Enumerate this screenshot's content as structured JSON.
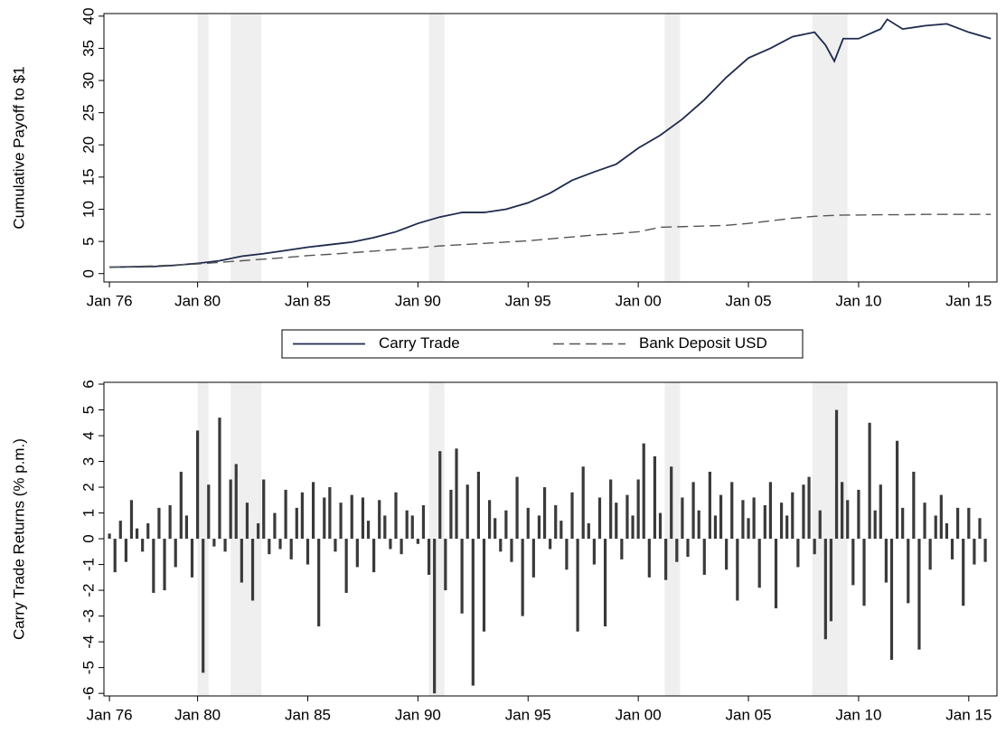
{
  "chart_data": [
    {
      "type": "line",
      "ylabel": "Cumulative Payoff to $1",
      "x": [
        1976,
        1977,
        1978,
        1979,
        1980,
        1981,
        1982,
        1983,
        1984,
        1985,
        1986,
        1987,
        1988,
        1989,
        1990,
        1991,
        1992,
        1993,
        1994,
        1995,
        1996,
        1997,
        1998,
        1999,
        2000,
        2001,
        2002,
        2003,
        2004,
        2005,
        2006,
        2007,
        2008,
        2008.5,
        2008.9,
        2009.3,
        2010,
        2011,
        2011.3,
        2012,
        2013,
        2014,
        2015,
        2016
      ],
      "series": [
        {
          "name": "Carry Trade",
          "color": "#1f2a4d",
          "dashed": false,
          "values": [
            1.0,
            1.05,
            1.1,
            1.3,
            1.6,
            2.0,
            2.7,
            3.1,
            3.6,
            4.1,
            4.5,
            4.9,
            5.6,
            6.5,
            7.8,
            8.8,
            9.5,
            9.5,
            10.0,
            11.0,
            12.5,
            14.5,
            15.8,
            17.0,
            19.5,
            21.5,
            24.0,
            27.0,
            30.5,
            33.5,
            35.0,
            36.8,
            37.5,
            35.5,
            33.0,
            36.5,
            36.5,
            38.0,
            39.5,
            38.0,
            38.5,
            38.8,
            37.5,
            36.5
          ]
        },
        {
          "name": "Bank Deposit USD",
          "color": "#555555",
          "dashed": true,
          "values": [
            1.0,
            1.1,
            1.2,
            1.35,
            1.5,
            1.75,
            2.0,
            2.25,
            2.5,
            2.8,
            3.0,
            3.25,
            3.5,
            3.75,
            4.0,
            4.3,
            4.5,
            4.7,
            4.9,
            5.1,
            5.4,
            5.7,
            6.0,
            6.2,
            6.5,
            7.2,
            7.3,
            7.4,
            7.5,
            7.8,
            8.2,
            8.6,
            8.9,
            9.0,
            9.05,
            9.1,
            9.1,
            9.15,
            9.15,
            9.15,
            9.2,
            9.2,
            9.2,
            9.2
          ]
        }
      ],
      "shaded_periods": [
        [
          1980.0,
          1980.5
        ],
        [
          1981.5,
          1982.9
        ],
        [
          1990.5,
          1991.2
        ],
        [
          2001.2,
          2001.9
        ],
        [
          2007.9,
          2009.5
        ]
      ],
      "shade_color": "#efefef",
      "xlim": [
        1975.75,
        2016.28
      ],
      "xticks": [
        {
          "value": 1976,
          "label": "Jan 76"
        },
        {
          "value": 1980,
          "label": "Jan 80"
        },
        {
          "value": 1985,
          "label": "Jan 85"
        },
        {
          "value": 1990,
          "label": "Jan 90"
        },
        {
          "value": 1995,
          "label": "Jan 95"
        },
        {
          "value": 2000,
          "label": "Jan 00"
        },
        {
          "value": 2005,
          "label": "Jan 05"
        },
        {
          "value": 2010,
          "label": "Jan 10"
        },
        {
          "value": 2015,
          "label": "Jan 15"
        }
      ],
      "ylim": [
        -1.3,
        40.4
      ],
      "yticks": [
        0,
        5,
        10,
        15,
        20,
        25,
        30,
        35,
        40
      ],
      "legend": "bottom"
    },
    {
      "type": "bar",
      "ylabel": "Carry Trade Returns (% p.m.)",
      "color": "#3a3a3a",
      "x": [
        1976,
        1976.25,
        1976.5,
        1976.75,
        1977,
        1977.25,
        1977.5,
        1977.75,
        1978,
        1978.25,
        1978.5,
        1978.75,
        1979,
        1979.25,
        1979.5,
        1979.75,
        1980,
        1980.25,
        1980.5,
        1980.75,
        1981,
        1981.25,
        1981.5,
        1981.75,
        1982,
        1982.25,
        1982.5,
        1982.75,
        1983,
        1983.25,
        1983.5,
        1983.75,
        1984,
        1984.25,
        1984.5,
        1984.75,
        1985,
        1985.25,
        1985.5,
        1985.75,
        1986,
        1986.25,
        1986.5,
        1986.75,
        1987,
        1987.25,
        1987.5,
        1987.75,
        1988,
        1988.25,
        1988.5,
        1988.75,
        1989,
        1989.25,
        1989.5,
        1989.75,
        1990,
        1990.25,
        1990.5,
        1990.75,
        1991,
        1991.25,
        1991.5,
        1991.75,
        1992,
        1992.25,
        1992.5,
        1992.75,
        1993,
        1993.25,
        1993.5,
        1993.75,
        1994,
        1994.25,
        1994.5,
        1994.75,
        1995,
        1995.25,
        1995.5,
        1995.75,
        1996,
        1996.25,
        1996.5,
        1996.75,
        1997,
        1997.25,
        1997.5,
        1997.75,
        1998,
        1998.25,
        1998.5,
        1998.75,
        1999,
        1999.25,
        1999.5,
        1999.75,
        2000,
        2000.25,
        2000.5,
        2000.75,
        2001,
        2001.25,
        2001.5,
        2001.75,
        2002,
        2002.25,
        2002.5,
        2002.75,
        2003,
        2003.25,
        2003.5,
        2003.75,
        2004,
        2004.25,
        2004.5,
        2004.75,
        2005,
        2005.25,
        2005.5,
        2005.75,
        2006,
        2006.25,
        2006.5,
        2006.75,
        2007,
        2007.25,
        2007.5,
        2007.75,
        2008,
        2008.25,
        2008.5,
        2008.75,
        2009,
        2009.25,
        2009.5,
        2009.75,
        2010,
        2010.25,
        2010.5,
        2010.75,
        2011,
        2011.25,
        2011.5,
        2011.75,
        2012,
        2012.25,
        2012.5,
        2012.75,
        2013,
        2013.25,
        2013.5,
        2013.75,
        2014,
        2014.25,
        2014.5,
        2014.75,
        2015,
        2015.25,
        2015.5,
        2015.75
      ],
      "values": [
        0.2,
        -1.3,
        0.7,
        -0.9,
        1.5,
        0.4,
        -0.5,
        0.6,
        -2.1,
        1.2,
        -2.0,
        1.3,
        -1.1,
        2.6,
        0.9,
        -1.5,
        4.2,
        -5.2,
        2.1,
        -0.3,
        4.7,
        -0.5,
        2.3,
        2.9,
        -1.7,
        1.4,
        -2.4,
        0.6,
        2.3,
        -0.6,
        1.0,
        -0.4,
        1.9,
        -0.8,
        1.2,
        1.8,
        -1.0,
        2.2,
        -3.4,
        1.6,
        2.0,
        -0.5,
        1.4,
        -2.1,
        1.7,
        -1.1,
        1.6,
        0.7,
        -1.3,
        1.5,
        0.9,
        -0.4,
        1.8,
        -0.6,
        1.1,
        0.9,
        -0.2,
        1.3,
        -1.4,
        -6.0,
        3.4,
        -2.0,
        1.9,
        3.5,
        -2.9,
        2.1,
        -5.7,
        2.6,
        -3.6,
        1.5,
        0.8,
        -0.5,
        1.1,
        -0.9,
        2.4,
        -3.0,
        1.2,
        -1.5,
        0.9,
        2.0,
        -0.4,
        1.3,
        0.7,
        -1.2,
        1.8,
        -3.6,
        2.8,
        0.6,
        -1.0,
        1.6,
        -3.4,
        2.3,
        1.4,
        -0.8,
        1.7,
        0.9,
        2.3,
        3.7,
        -1.5,
        3.2,
        1.0,
        -1.6,
        2.8,
        -0.9,
        1.6,
        -0.7,
        2.2,
        1.1,
        -1.4,
        2.6,
        0.9,
        1.7,
        -1.2,
        2.2,
        -2.4,
        1.5,
        0.8,
        1.6,
        -1.9,
        1.3,
        2.2,
        -2.7,
        1.4,
        0.9,
        1.8,
        -1.1,
        2.1,
        2.4,
        -0.6,
        1.1,
        -3.9,
        -3.2,
        5.0,
        2.2,
        1.5,
        -1.8,
        1.9,
        -2.6,
        4.5,
        1.1,
        2.1,
        -1.7,
        -4.7,
        3.8,
        1.2,
        -2.5,
        2.6,
        -4.3,
        1.4,
        -1.2,
        0.9,
        1.7,
        0.6,
        -0.8,
        1.2,
        -2.6,
        1.2,
        -1.0,
        0.8,
        -0.9
      ],
      "shaded_periods": [
        [
          1980.0,
          1980.5
        ],
        [
          1981.5,
          1982.9
        ],
        [
          1990.5,
          1991.2
        ],
        [
          2001.2,
          2001.9
        ],
        [
          2007.9,
          2009.5
        ]
      ],
      "shade_color": "#efefef",
      "xlim": [
        1975.75,
        2016.28
      ],
      "xticks": [
        {
          "value": 1976,
          "label": "Jan 76"
        },
        {
          "value": 1980,
          "label": "Jan 80"
        },
        {
          "value": 1985,
          "label": "Jan 85"
        },
        {
          "value": 1990,
          "label": "Jan 90"
        },
        {
          "value": 1995,
          "label": "Jan 95"
        },
        {
          "value": 2000,
          "label": "Jan 00"
        },
        {
          "value": 2005,
          "label": "Jan 05"
        },
        {
          "value": 2010,
          "label": "Jan 10"
        },
        {
          "value": 2015,
          "label": "Jan 15"
        }
      ],
      "ylim": [
        -6.1,
        6.07
      ],
      "yticks": [
        -6,
        -5,
        -4,
        -3,
        -2,
        -1,
        0,
        1,
        2,
        3,
        4,
        5,
        6
      ]
    }
  ]
}
